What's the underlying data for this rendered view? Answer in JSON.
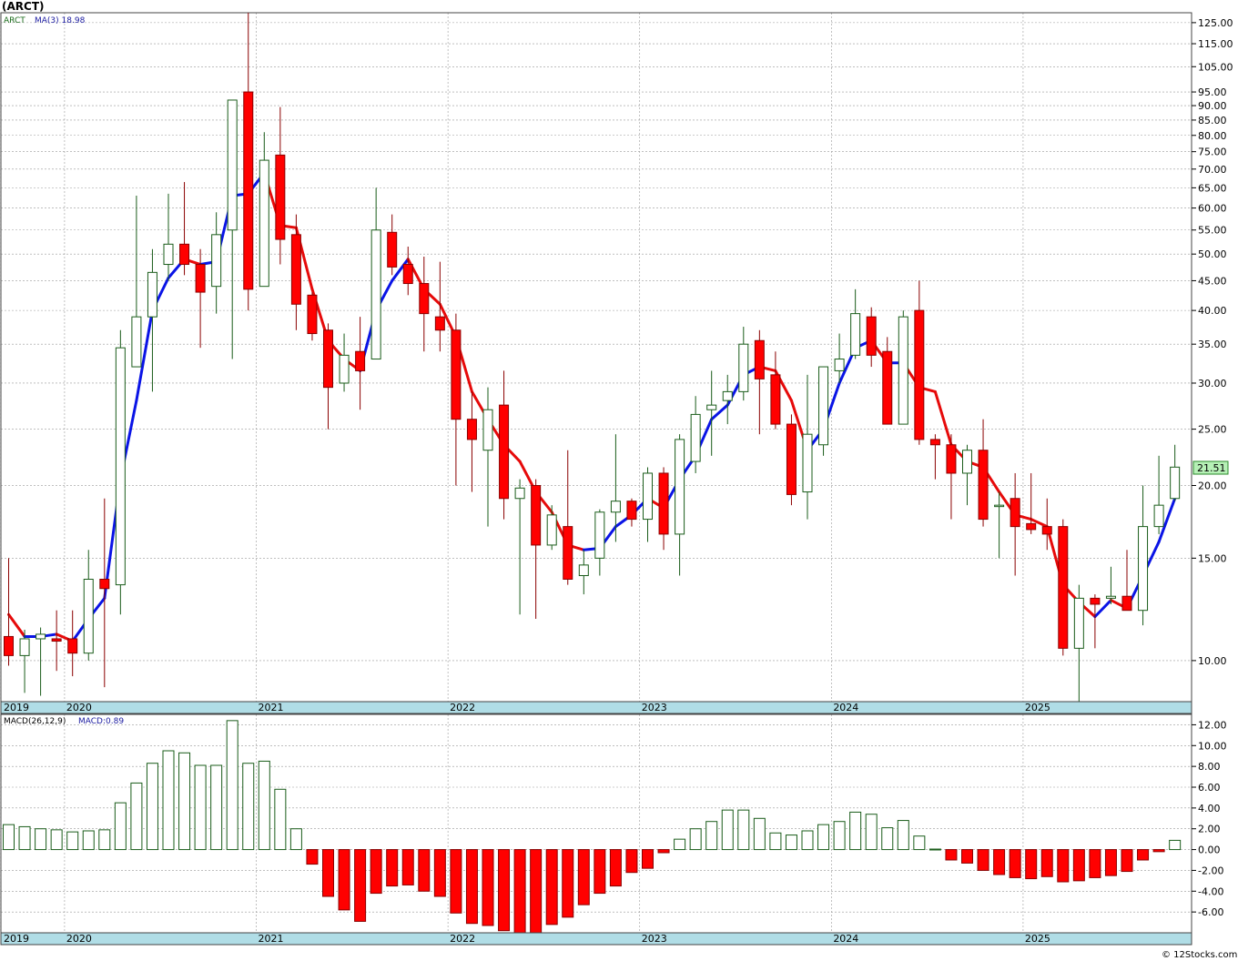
{
  "symbol_label": "(ARCT)",
  "credit": "© 12Stocks.com",
  "colors": {
    "up_fill": "#ffffff",
    "up_stroke": "#1a5c1a",
    "down_fill": "#ff0000",
    "down_stroke": "#8a0000",
    "ma_rising": "#0a14e6",
    "ma_falling": "#e60a0a",
    "axis_band": "#b0dde6",
    "grid": "#999999",
    "last_price_bg": "#b6f0b6"
  },
  "price_panel": {
    "legend_ticker": "ARCT",
    "legend_ma": "MA(3) 18.98",
    "last_price": "21.51"
  },
  "macd_panel": {
    "legend_params": "MACD(26,12,9)",
    "legend_value": "MACD:0.89"
  },
  "chart_data": [
    {
      "type": "candlestick",
      "scale": "log",
      "interval": "monthly",
      "ylim": [
        8.5,
        130
      ],
      "y_ticks": [
        "10.00",
        "15.00",
        "20.00",
        "25.00",
        "30.00",
        "35.00",
        "40.00",
        "45.00",
        "50.00",
        "55.00",
        "60.00",
        "65.00",
        "70.00",
        "75.00",
        "80.00",
        "85.00",
        "90.00",
        "95.00",
        "105.00",
        "115.00",
        "125.00"
      ],
      "x_labels": [
        "2019",
        "2020",
        "2021",
        "2022",
        "2023",
        "2024",
        "2025"
      ],
      "x_label_index": [
        0,
        4,
        16,
        28,
        40,
        52,
        64
      ],
      "grid": true,
      "overlay": {
        "name": "MA(3)",
        "last": 18.98
      },
      "candles": [
        {
          "o": 11.0,
          "h": 15.0,
          "l": 9.8,
          "c": 10.2
        },
        {
          "o": 10.2,
          "h": 11.3,
          "l": 8.8,
          "c": 10.9
        },
        {
          "o": 10.9,
          "h": 11.4,
          "l": 8.7,
          "c": 11.1
        },
        {
          "o": 10.9,
          "h": 12.2,
          "l": 9.6,
          "c": 10.8
        },
        {
          "o": 10.9,
          "h": 12.2,
          "l": 9.4,
          "c": 10.3
        },
        {
          "o": 10.3,
          "h": 15.5,
          "l": 10.0,
          "c": 13.8
        },
        {
          "o": 13.8,
          "h": 19.0,
          "l": 9.0,
          "c": 13.3
        },
        {
          "o": 13.5,
          "h": 37.0,
          "l": 12.0,
          "c": 34.5
        },
        {
          "o": 32.0,
          "h": 63.0,
          "l": 32.0,
          "c": 39.0
        },
        {
          "o": 39.0,
          "h": 51.0,
          "l": 29.0,
          "c": 46.5
        },
        {
          "o": 48.0,
          "h": 63.5,
          "l": 45.0,
          "c": 52.0
        },
        {
          "o": 52.0,
          "h": 66.5,
          "l": 46.0,
          "c": 48.0
        },
        {
          "o": 48.0,
          "h": 51.0,
          "l": 34.5,
          "c": 43.0
        },
        {
          "o": 44.0,
          "h": 59.0,
          "l": 39.5,
          "c": 54.0
        },
        {
          "o": 55.0,
          "h": 92.0,
          "l": 33.0,
          "c": 92.0
        },
        {
          "o": 95.0,
          "h": 130.0,
          "l": 40.0,
          "c": 43.5
        },
        {
          "o": 44.0,
          "h": 81.0,
          "l": 44.0,
          "c": 72.5
        },
        {
          "o": 74.0,
          "h": 89.5,
          "l": 48.0,
          "c": 53.0
        },
        {
          "o": 54.0,
          "h": 58.5,
          "l": 37.0,
          "c": 41.0
        },
        {
          "o": 42.5,
          "h": 43.0,
          "l": 35.5,
          "c": 36.5
        },
        {
          "o": 37.0,
          "h": 38.0,
          "l": 25.0,
          "c": 29.5
        },
        {
          "o": 30.0,
          "h": 36.5,
          "l": 29.0,
          "c": 33.5
        },
        {
          "o": 34.0,
          "h": 39.0,
          "l": 27.0,
          "c": 31.5
        },
        {
          "o": 33.0,
          "h": 65.0,
          "l": 33.0,
          "c": 55.0
        },
        {
          "o": 54.5,
          "h": 58.5,
          "l": 46.0,
          "c": 47.5
        },
        {
          "o": 48.0,
          "h": 51.5,
          "l": 42.5,
          "c": 44.5
        },
        {
          "o": 44.5,
          "h": 49.5,
          "l": 34.0,
          "c": 39.5
        },
        {
          "o": 39.0,
          "h": 48.5,
          "l": 34.0,
          "c": 37.0
        },
        {
          "o": 37.0,
          "h": 39.5,
          "l": 20.0,
          "c": 26.0
        },
        {
          "o": 26.0,
          "h": 29.0,
          "l": 19.5,
          "c": 24.0
        },
        {
          "o": 23.0,
          "h": 29.5,
          "l": 17.0,
          "c": 27.0
        },
        {
          "o": 27.5,
          "h": 31.5,
          "l": 17.5,
          "c": 19.0
        },
        {
          "o": 19.0,
          "h": 20.5,
          "l": 12.0,
          "c": 19.8
        },
        {
          "o": 20.0,
          "h": 20.5,
          "l": 11.8,
          "c": 15.8
        },
        {
          "o": 15.8,
          "h": 18.5,
          "l": 15.5,
          "c": 17.8
        },
        {
          "o": 17.0,
          "h": 23.0,
          "l": 13.5,
          "c": 13.8
        },
        {
          "o": 14.0,
          "h": 15.5,
          "l": 13.0,
          "c": 14.6
        },
        {
          "o": 15.0,
          "h": 18.2,
          "l": 14.0,
          "c": 18.0
        },
        {
          "o": 18.0,
          "h": 24.5,
          "l": 16.0,
          "c": 18.8
        },
        {
          "o": 18.8,
          "h": 19.0,
          "l": 17.0,
          "c": 17.5
        },
        {
          "o": 17.5,
          "h": 21.5,
          "l": 16.0,
          "c": 21.0
        },
        {
          "o": 21.0,
          "h": 21.5,
          "l": 15.5,
          "c": 16.5
        },
        {
          "o": 16.5,
          "h": 24.5,
          "l": 14.0,
          "c": 24.0
        },
        {
          "o": 22.0,
          "h": 28.5,
          "l": 21.0,
          "c": 26.5
        },
        {
          "o": 27.0,
          "h": 31.5,
          "l": 22.5,
          "c": 27.5
        },
        {
          "o": 28.0,
          "h": 31.0,
          "l": 25.5,
          "c": 29.0
        },
        {
          "o": 29.0,
          "h": 37.5,
          "l": 28.0,
          "c": 35.0
        },
        {
          "o": 35.5,
          "h": 37.0,
          "l": 24.5,
          "c": 30.5
        },
        {
          "o": 31.0,
          "h": 34.0,
          "l": 25.0,
          "c": 25.5
        },
        {
          "o": 25.5,
          "h": 26.5,
          "l": 18.5,
          "c": 19.3
        },
        {
          "o": 19.5,
          "h": 31.0,
          "l": 17.5,
          "c": 24.5
        },
        {
          "o": 23.5,
          "h": 32.0,
          "l": 22.5,
          "c": 32.0
        },
        {
          "o": 31.5,
          "h": 36.5,
          "l": 30.0,
          "c": 33.0
        },
        {
          "o": 33.5,
          "h": 43.5,
          "l": 33.0,
          "c": 39.5
        },
        {
          "o": 39.0,
          "h": 40.5,
          "l": 32.0,
          "c": 33.5
        },
        {
          "o": 34.0,
          "h": 36.0,
          "l": 25.5,
          "c": 25.5
        },
        {
          "o": 25.5,
          "h": 40.0,
          "l": 25.5,
          "c": 39.0
        },
        {
          "o": 40.0,
          "h": 45.0,
          "l": 23.5,
          "c": 24.0
        },
        {
          "o": 24.0,
          "h": 24.5,
          "l": 20.5,
          "c": 23.5
        },
        {
          "o": 23.5,
          "h": 24.5,
          "l": 17.5,
          "c": 21.0
        },
        {
          "o": 21.0,
          "h": 23.5,
          "l": 18.5,
          "c": 23.0
        },
        {
          "o": 23.0,
          "h": 26.0,
          "l": 17.0,
          "c": 17.5
        },
        {
          "o": 18.5,
          "h": 19.5,
          "l": 15.0,
          "c": 18.5
        },
        {
          "o": 19.0,
          "h": 21.0,
          "l": 14.0,
          "c": 17.0
        },
        {
          "o": 17.2,
          "h": 21.0,
          "l": 16.5,
          "c": 16.8
        },
        {
          "o": 17.0,
          "h": 19.0,
          "l": 15.5,
          "c": 16.5
        },
        {
          "o": 17.0,
          "h": 17.5,
          "l": 10.2,
          "c": 10.5
        },
        {
          "o": 10.5,
          "h": 13.5,
          "l": 8.5,
          "c": 12.8
        },
        {
          "o": 12.8,
          "h": 13.0,
          "l": 10.5,
          "c": 12.5
        },
        {
          "o": 12.8,
          "h": 14.5,
          "l": 12.5,
          "c": 12.9
        },
        {
          "o": 12.9,
          "h": 15.5,
          "l": 12.2,
          "c": 12.2
        },
        {
          "o": 12.2,
          "h": 20.0,
          "l": 11.5,
          "c": 17.0
        },
        {
          "o": 17.0,
          "h": 22.5,
          "l": 16.5,
          "c": 18.5
        },
        {
          "o": 19.0,
          "h": 23.5,
          "l": 18.8,
          "c": 21.51
        }
      ],
      "ma": [
        12.0,
        11.0,
        11.0,
        11.1,
        10.8,
        11.8,
        12.8,
        20.5,
        28.0,
        40.0,
        45.5,
        49.0,
        48.0,
        48.5,
        63.0,
        63.5,
        69.0,
        56.0,
        55.5,
        43.5,
        35.5,
        33.0,
        31.5,
        40.0,
        45.0,
        49.0,
        43.5,
        41.0,
        36.0,
        29.0,
        26.0,
        23.5,
        22.0,
        19.5,
        18.0,
        15.8,
        15.5,
        15.6,
        17.0,
        17.8,
        19.0,
        18.3,
        20.5,
        22.5,
        26.0,
        27.5,
        31.0,
        32.0,
        31.5,
        28.0,
        23.0,
        25.0,
        30.0,
        34.5,
        35.5,
        32.5,
        32.5,
        29.5,
        29.0,
        23.5,
        22.0,
        21.5,
        19.5,
        17.8,
        17.5,
        17.0,
        13.5,
        12.6,
        11.9,
        12.7,
        12.3,
        14.0,
        16.0,
        19.0
      ]
    },
    {
      "type": "bar",
      "name": "MACD(26,12,9)",
      "last": 0.89,
      "ylim": [
        -8.0,
        13.0
      ],
      "y_ticks": [
        "-6.00",
        "-4.00",
        "-2.00",
        "0.00",
        "2.00",
        "4.00",
        "6.00",
        "8.00",
        "10.00",
        "12.00"
      ],
      "x_labels": [
        "2019",
        "2020",
        "2021",
        "2022",
        "2023",
        "2024",
        "2025"
      ],
      "grid": true,
      "values": [
        2.4,
        2.2,
        2.0,
        1.9,
        1.7,
        1.8,
        1.9,
        4.5,
        6.4,
        8.3,
        9.5,
        9.3,
        8.1,
        8.1,
        12.4,
        8.3,
        8.5,
        5.8,
        2.0,
        -1.4,
        -4.5,
        -5.8,
        -6.9,
        -4.2,
        -3.5,
        -3.4,
        -4.0,
        -4.5,
        -6.1,
        -7.1,
        -7.3,
        -7.8,
        -8.0,
        -8.1,
        -7.2,
        -6.5,
        -5.3,
        -4.2,
        -3.5,
        -2.2,
        -1.8,
        -0.3,
        1.0,
        2.0,
        2.7,
        3.8,
        3.8,
        3.0,
        1.6,
        1.4,
        1.8,
        2.4,
        2.7,
        3.6,
        3.4,
        2.1,
        2.8,
        1.3,
        0.05,
        -1.0,
        -1.3,
        -2.0,
        -2.4,
        -2.7,
        -2.8,
        -2.6,
        -3.1,
        -3.0,
        -2.7,
        -2.5,
        -2.1,
        -1.0,
        -0.2,
        0.89
      ]
    }
  ]
}
